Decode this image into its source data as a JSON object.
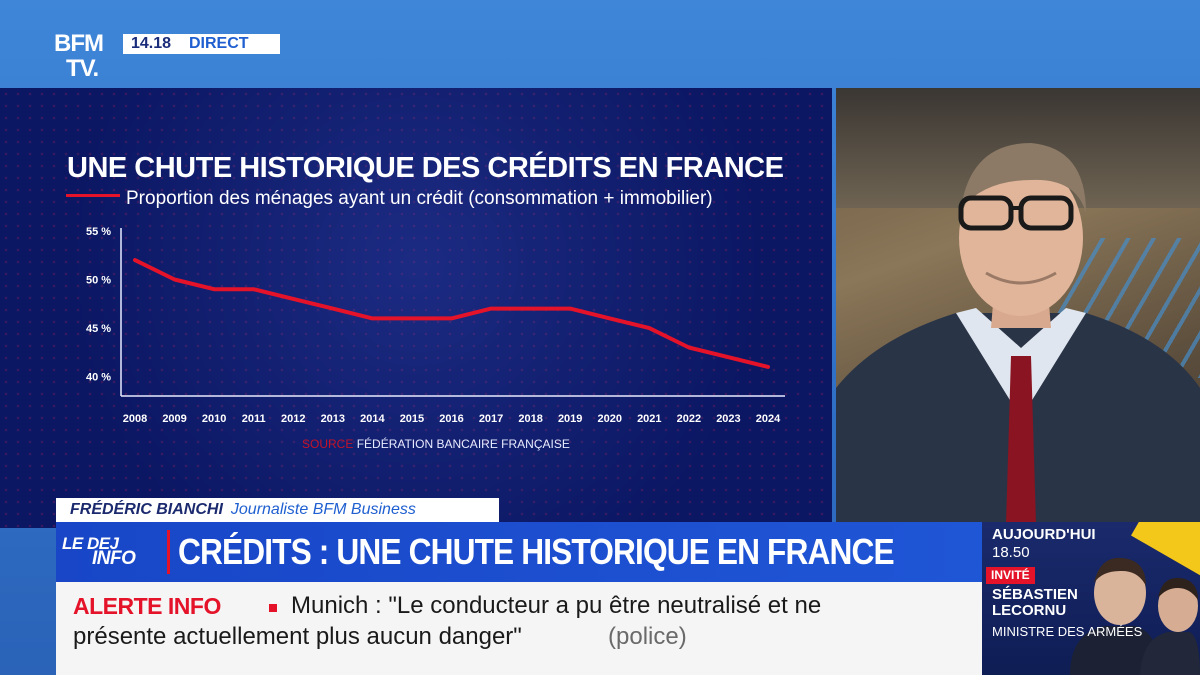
{
  "channel": {
    "logo_line1": "BFM",
    "logo_line2": "TV.",
    "time": "14.18",
    "live_label": "DIRECT"
  },
  "chart_data": {
    "type": "line",
    "title": "UNE CHUTE HISTORIQUE DES CRÉDITS EN FRANCE",
    "subtitle": "Proportion des ménages ayant un crédit (consommation + immobilier)",
    "x": [
      "2008",
      "2009",
      "2010",
      "2011",
      "2012",
      "2013",
      "2014",
      "2015",
      "2016",
      "2017",
      "2018",
      "2019",
      "2020",
      "2021",
      "2022",
      "2023",
      "2024"
    ],
    "series": [
      {
        "values": [
          52,
          50,
          49,
          49,
          48,
          47,
          46,
          46,
          46,
          47,
          47,
          47,
          46,
          45,
          43,
          42,
          41
        ],
        "color": "#e4132a"
      }
    ],
    "y_ticks": [
      {
        "value": 55,
        "label": "55 %"
      },
      {
        "value": 50,
        "label": "50 %"
      },
      {
        "value": 45,
        "label": "45 %"
      },
      {
        "value": 40,
        "label": "40 %"
      }
    ],
    "ylim": [
      38,
      55
    ],
    "grid": false,
    "source_label": "SOURCE",
    "source_name": "FÉDÉRATION BANCAIRE FRANÇAISE"
  },
  "lower_third": {
    "name": "FRÉDÉRIC BIANCHI",
    "role": "Journaliste BFM Business",
    "show_line1": "LE DEJ",
    "show_line2": "INFO",
    "headline": "CRÉDITS : UNE CHUTE HISTORIQUE EN FRANCE"
  },
  "ticker": {
    "label": "ALERTE INFO",
    "text_line1": "Munich : \"Le conducteur a pu être neutralisé et ne",
    "text_line2": "présente actuellement plus aucun danger\"",
    "source": "(police)"
  },
  "promo": {
    "when": "AUJOURD'HUI",
    "time": "18.50",
    "tag": "INVITÉ",
    "guest": "SÉBASTIEN\nLECORNU",
    "guest_role": "MINISTRE DES ARMÉES"
  }
}
